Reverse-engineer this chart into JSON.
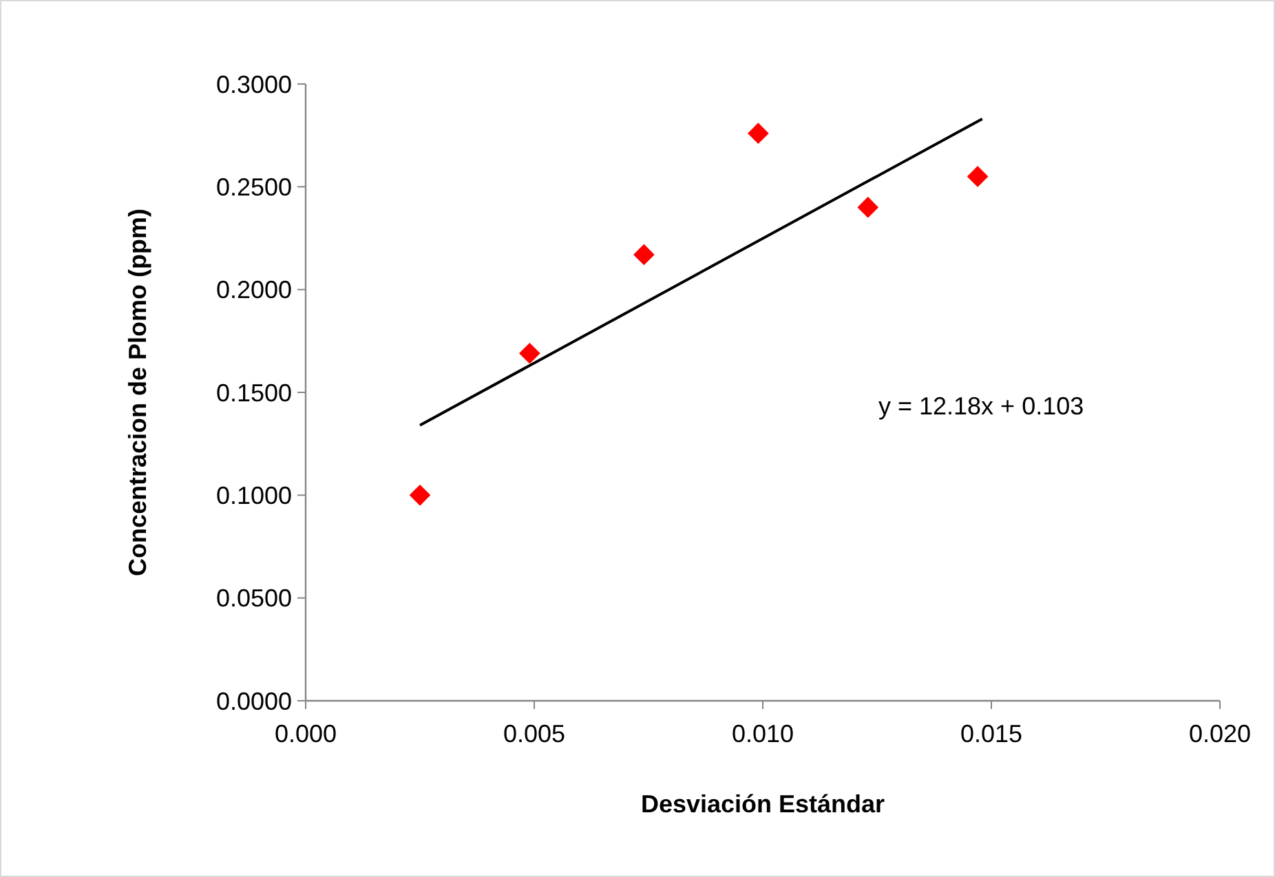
{
  "chart_data": {
    "type": "scatter",
    "xlabel": "Desviación Estándar",
    "ylabel": "Concentracion de Plomo (ppm)",
    "x": [
      0.0025,
      0.0049,
      0.0074,
      0.0099,
      0.0123,
      0.0147
    ],
    "series": [
      {
        "color": "#ff0000",
        "marker": "diamond",
        "values": [
          0.1,
          0.169,
          0.217,
          0.276,
          0.24,
          0.255
        ]
      },
      {
        "type": "line",
        "color": "#000000",
        "marker": "none",
        "x": [
          0.0025,
          0.0148
        ],
        "values": [
          0.134,
          0.283
        ]
      }
    ],
    "xlim": [
      0,
      0.02
    ],
    "xticks": [
      {
        "value": 0,
        "label": "0.000"
      },
      {
        "value": 0.005,
        "label": "0.005"
      },
      {
        "value": 0.01,
        "label": "0.010"
      },
      {
        "value": 0.015,
        "label": "0.015"
      },
      {
        "value": 0.02,
        "label": "0.020"
      }
    ],
    "ylim": [
      0,
      0.3
    ],
    "yticks": [
      {
        "value": 0,
        "label": "0.0000"
      },
      {
        "value": 0.05,
        "label": "0.0500"
      },
      {
        "value": 0.1,
        "label": "0.1000"
      },
      {
        "value": 0.15,
        "label": "0.1500"
      },
      {
        "value": 0.2,
        "label": "0.2000"
      },
      {
        "value": 0.25,
        "label": "0.2500"
      },
      {
        "value": 0.3,
        "label": "0.3000"
      }
    ],
    "annotations": [
      "y = 12.18x + 0.103"
    ],
    "grid": false
  }
}
